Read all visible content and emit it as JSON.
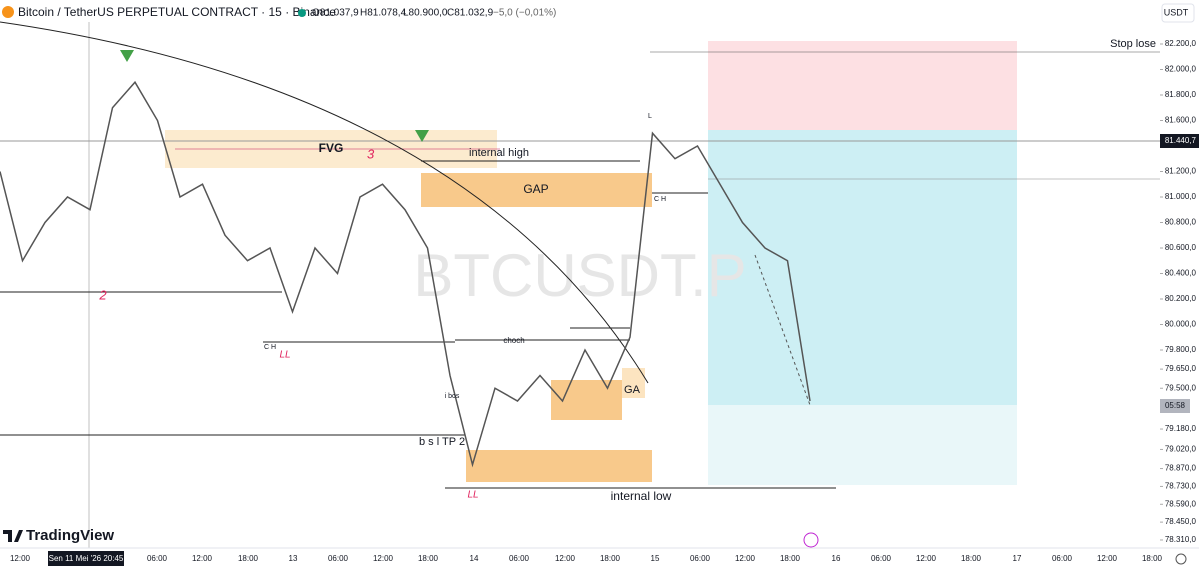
{
  "header": {
    "symbol": "Bitcoin / TetherUS PERPETUAL CONTRACT · 15 · Binance",
    "open": "O81.037,9",
    "high": "H81.078,4",
    "low": "L80.900,0",
    "close": "C81.032,9",
    "change": "−5,0 (−0,01%)",
    "currency": "USDT"
  },
  "chart_data": {
    "type": "line",
    "color": "#555555",
    "values": [
      81200,
      80500,
      80800,
      81000,
      80900,
      81700,
      81900,
      81600,
      81000,
      81100,
      80700,
      80500,
      80600,
      80100,
      80600,
      80400,
      81000,
      81100,
      80900,
      80600,
      79600,
      78900,
      79500,
      79400,
      79600,
      79400,
      79800,
      79500,
      79900,
      81500,
      81300,
      81400,
      81100,
      80800,
      80600,
      80500,
      79400
    ],
    "ylim": [
      78247,
      82545
    ],
    "yticks": [
      {
        "value": 82200,
        "label": "82.200,0"
      },
      {
        "value": 82000,
        "label": "82.000,0"
      },
      {
        "value": 81800,
        "label": "81.800,0"
      },
      {
        "value": 81600,
        "label": "81.600,0"
      },
      {
        "value": 81200,
        "label": "81.200,0"
      },
      {
        "value": 81000,
        "label": "81.000,0"
      },
      {
        "value": 80800,
        "label": "80.800,0"
      },
      {
        "value": 80600,
        "label": "80.600,0"
      },
      {
        "value": 80400,
        "label": "80.400,0"
      },
      {
        "value": 80200,
        "label": "80.200,0"
      },
      {
        "value": 80000,
        "label": "80.000,0"
      },
      {
        "value": 79800,
        "label": "79.800,0"
      },
      {
        "value": 79650,
        "label": "79.650,0"
      },
      {
        "value": 79500,
        "label": "79.500,0"
      },
      {
        "value": 79180,
        "label": "79.180,0"
      },
      {
        "value": 79020,
        "label": "79.020,0"
      },
      {
        "value": 78870,
        "label": "78.870,0"
      },
      {
        "value": 78730,
        "label": "78.730,0"
      },
      {
        "value": 78590,
        "label": "78.590,0"
      },
      {
        "value": 78450,
        "label": "78.450,0"
      },
      {
        "value": 78310,
        "label": "78.310,0"
      }
    ],
    "time_labels": [
      "12:00",
      "06:00",
      "12:00",
      "18:00",
      "13",
      "06:00",
      "12:00",
      "18:00",
      "14",
      "06:00",
      "12:00",
      "18:00",
      "15",
      "06:00",
      "12:00",
      "18:00",
      "16",
      "06:00",
      "12:00",
      "18:00",
      "17",
      "06:00",
      "12:00",
      "18:00"
    ],
    "crosshair_time": "Sen 11 Mei '26  20:45",
    "price_badge": "81.440,7",
    "countdown": "05:58"
  },
  "annotations": {
    "fvg": "FVG",
    "three": "3",
    "two": "2",
    "internal_high": "internal high",
    "gap": "GAP",
    "ch_1": "C H",
    "ch_2": "C H",
    "ll_1": "LL",
    "ll_2": "LL",
    "choch": "choch",
    "ibos": "i bos",
    "bsl": "b s l  TP 2",
    "ga": "GA",
    "internal_low": "internal low",
    "l": "L",
    "stop": "Stop lose",
    "watermark": "BTCUSDT.P"
  },
  "brand": "TradingView"
}
